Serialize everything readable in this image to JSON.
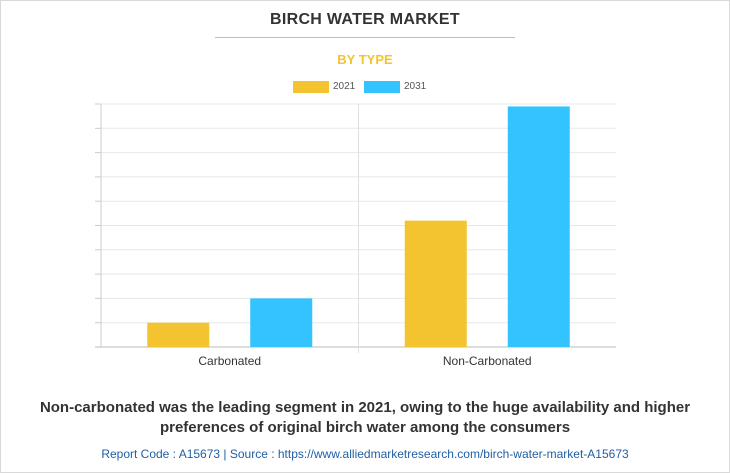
{
  "title": "BIRCH WATER MARKET",
  "subtitle": "BY TYPE",
  "caption": "Non-carbonated was the leading segment in 2021, owing to the huge availability and higher preferences of original birch water among the consumers",
  "footer": "Report Code : A15673  |  Source : https://www.alliedmarketresearch.com/birch-water-market-A15673",
  "colors": {
    "series_2021": "#f4c430",
    "series_2031": "#33c4ff"
  },
  "chart_data": {
    "type": "bar",
    "title": "BIRCH WATER MARKET",
    "subtitle": "BY TYPE",
    "categories": [
      "Carbonated",
      "Non-Carbonated"
    ],
    "series": [
      {
        "name": "2021",
        "values": [
          1,
          5.2
        ],
        "color": "#f4c430"
      },
      {
        "name": "2031",
        "values": [
          2,
          9.9
        ],
        "color": "#33c4ff"
      }
    ],
    "xlabel": "",
    "ylabel": "",
    "ylim": [
      0,
      10
    ],
    "y_tick_labels_shown": false,
    "grid": true,
    "legend_position": "top-center"
  }
}
